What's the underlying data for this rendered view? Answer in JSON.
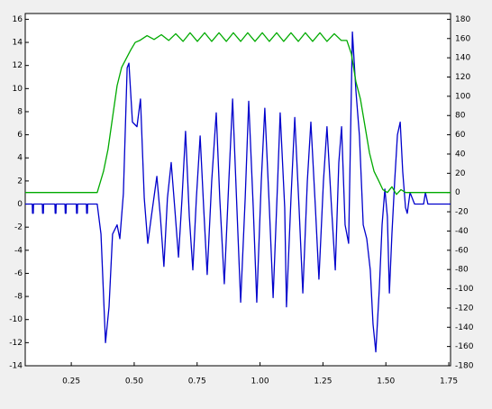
{
  "chart_data": {
    "type": "line",
    "xlim": [
      0.067,
      1.757
    ],
    "ylim": [
      -14,
      16.5
    ],
    "y2lim": [
      -180,
      186
    ],
    "xticks": [
      0.25,
      {
        "value": 0.5,
        "label": "0.50"
      },
      0.75,
      {
        "value": 1,
        "label": "1.00"
      },
      1.25,
      {
        "value": 1.5,
        "label": "1.50"
      },
      1.75
    ],
    "yticks": [
      -14,
      -12,
      -10,
      -8,
      -6,
      -4,
      -2,
      0,
      2,
      4,
      6,
      8,
      10,
      12,
      14,
      16
    ],
    "y2ticks": [
      -180,
      -160,
      -140,
      -120,
      -100,
      -80,
      -60,
      -40,
      -20,
      0,
      20,
      40,
      60,
      80,
      100,
      120,
      140,
      160,
      180
    ],
    "series": [
      {
        "color": "#0000cc",
        "axis": "y",
        "x": [
          0.067,
          0.095,
          0.096,
          0.099,
          0.1,
          0.135,
          0.136,
          0.139,
          0.14,
          0.185,
          0.186,
          0.189,
          0.19,
          0.225,
          0.226,
          0.229,
          0.23,
          0.27,
          0.271,
          0.274,
          0.275,
          0.31,
          0.311,
          0.314,
          0.315,
          0.353,
          0.368,
          0.386,
          0.4,
          0.414,
          0.432,
          0.443,
          0.457,
          0.472,
          0.479,
          0.493,
          0.511,
          0.525,
          0.54,
          0.554,
          0.568,
          0.59,
          0.604,
          0.618,
          0.632,
          0.647,
          0.661,
          0.676,
          0.69,
          0.704,
          0.719,
          0.733,
          0.747,
          0.762,
          0.776,
          0.79,
          0.808,
          0.826,
          0.84,
          0.858,
          0.876,
          0.891,
          0.908,
          0.923,
          0.941,
          0.955,
          0.973,
          0.987,
          1.005,
          1.019,
          1.037,
          1.052,
          1.07,
          1.08,
          1.098,
          1.105,
          1.123,
          1.138,
          1.155,
          1.17,
          1.188,
          1.202,
          1.22,
          1.234,
          1.252,
          1.266,
          1.284,
          1.299,
          1.313,
          1.324,
          1.338,
          1.352,
          1.367,
          1.381,
          1.395,
          1.41,
          1.424,
          1.438,
          1.449,
          1.46,
          1.474,
          1.485,
          1.496,
          1.506,
          1.514,
          1.524,
          1.535,
          1.546,
          1.557,
          1.567,
          1.578,
          1.585,
          1.596,
          1.614,
          1.65,
          1.657,
          1.667,
          1.757
        ],
        "values": [
          0,
          0,
          -0.8,
          -0.8,
          0,
          0,
          -0.8,
          -0.8,
          0,
          0,
          -0.8,
          -0.8,
          0,
          0,
          -0.8,
          -0.8,
          0,
          0,
          -0.8,
          -0.8,
          0,
          0,
          -0.8,
          -0.8,
          0,
          0,
          -2.6,
          -12,
          -8.9,
          -2.6,
          -1.8,
          -3,
          0.9,
          11.8,
          12.2,
          7.1,
          6.7,
          9.1,
          0.5,
          -3.4,
          -1.1,
          2.4,
          -1.1,
          -5.4,
          0.5,
          3.6,
          -0.3,
          -4.6,
          0.5,
          6.3,
          -1.1,
          -5.7,
          0.5,
          5.9,
          -0.3,
          -6.1,
          2,
          7.9,
          0.5,
          -6.9,
          2,
          9.1,
          -0.3,
          -8.5,
          0.5,
          8.9,
          -0.3,
          -8.5,
          2,
          8.3,
          -0.3,
          -8.1,
          2,
          7.9,
          -0.3,
          -8.9,
          0.5,
          7.5,
          -0.3,
          -7.7,
          2,
          7.1,
          -0.3,
          -6.5,
          2,
          6.7,
          -0.3,
          -5.7,
          3.6,
          6.7,
          -1.8,
          -3.4,
          14.9,
          9.8,
          5.9,
          -1.8,
          -3,
          -5.7,
          -10.4,
          -12.8,
          -7.3,
          -1.8,
          1.3,
          -1.1,
          -7.7,
          -2.6,
          2,
          6,
          7.1,
          2.8,
          -0.3,
          -0.8,
          1,
          0,
          0,
          1,
          0,
          0
        ]
      },
      {
        "color": "#00aa00",
        "axis": "y2",
        "x": [
          0.067,
          0.353,
          0.378,
          0.396,
          0.414,
          0.432,
          0.45,
          0.468,
          0.486,
          0.504,
          0.522,
          0.551,
          0.579,
          0.608,
          0.637,
          0.665,
          0.694,
          0.722,
          0.751,
          0.78,
          0.808,
          0.837,
          0.866,
          0.894,
          0.923,
          0.951,
          0.98,
          1.009,
          1.037,
          1.066,
          1.094,
          1.123,
          1.152,
          1.18,
          1.209,
          1.238,
          1.266,
          1.295,
          1.323,
          1.345,
          1.363,
          1.381,
          1.399,
          1.417,
          1.435,
          1.453,
          1.47,
          1.488,
          1.506,
          1.524,
          1.542,
          1.56,
          1.578,
          1.757
        ],
        "values": [
          0,
          0,
          22,
          45,
          78,
          111,
          130,
          139,
          148,
          156,
          158,
          163,
          159,
          164,
          158,
          165,
          157,
          166,
          157,
          166,
          157,
          166,
          157,
          166,
          157,
          166,
          157,
          166,
          157,
          166,
          157,
          166,
          157,
          166,
          157,
          166,
          157,
          165,
          158,
          158,
          144,
          115,
          97,
          69,
          41,
          22,
          13,
          3,
          0,
          6,
          -2,
          3,
          0,
          0
        ]
      }
    ]
  }
}
